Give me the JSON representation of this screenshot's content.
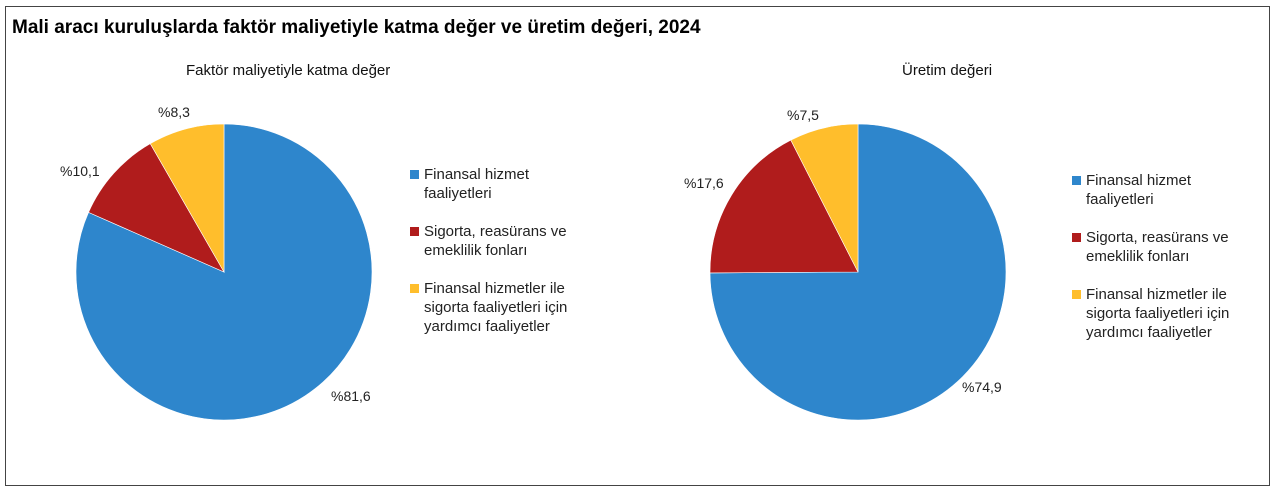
{
  "title": "Mali aracı kuruluşlarda faktör maliyetiyle katma değer ve üretim değeri, 2024",
  "colors": {
    "finance": "#2E86CC",
    "insurance": "#B01C1C",
    "auxiliary": "#FFBE2C"
  },
  "chart_data": [
    {
      "type": "pie",
      "title": "Faktör maliyetiyle katma değer",
      "categories": [
        "Finansal hizmet faaliyetleri",
        "Sigorta, reasürans ve emeklilik fonları",
        "Finansal hizmetler ile sigorta faaliyetleri için yardımcı faaliyetler"
      ],
      "values": [
        81.6,
        10.1,
        8.3
      ],
      "labels": [
        "%81,6",
        "%10,1",
        "%8,3"
      ],
      "legend": [
        {
          "line1": "Finansal hizmet",
          "line2": "faaliyetleri",
          "line3": ""
        },
        {
          "line1": "Sigorta, reasürans ve",
          "line2": "emeklilik fonları",
          "line3": ""
        },
        {
          "line1": "Finansal hizmetler ile",
          "line2": "sigorta faaliyetleri için",
          "line3": "yardımcı faaliyetler"
        }
      ],
      "legend_position": "right"
    },
    {
      "type": "pie",
      "title": "Üretim değeri",
      "categories": [
        "Finansal hizmet faaliyetleri",
        "Sigorta, reasürans ve emeklilik fonları",
        "Finansal hizmetler ile sigorta faaliyetleri için yardımcı faaliyetler"
      ],
      "values": [
        74.9,
        17.6,
        7.5
      ],
      "labels": [
        "%74,9",
        "%17,6",
        "%7,5"
      ],
      "legend": [
        {
          "line1": "Finansal hizmet",
          "line2": "faaliyetleri",
          "line3": ""
        },
        {
          "line1": "Sigorta, reasürans ve",
          "line2": "emeklilik fonları",
          "line3": ""
        },
        {
          "line1": "Finansal hizmetler ile",
          "line2": "sigorta faaliyetleri için",
          "line3": "yardımcı faaliyetler"
        }
      ],
      "legend_position": "right"
    }
  ]
}
